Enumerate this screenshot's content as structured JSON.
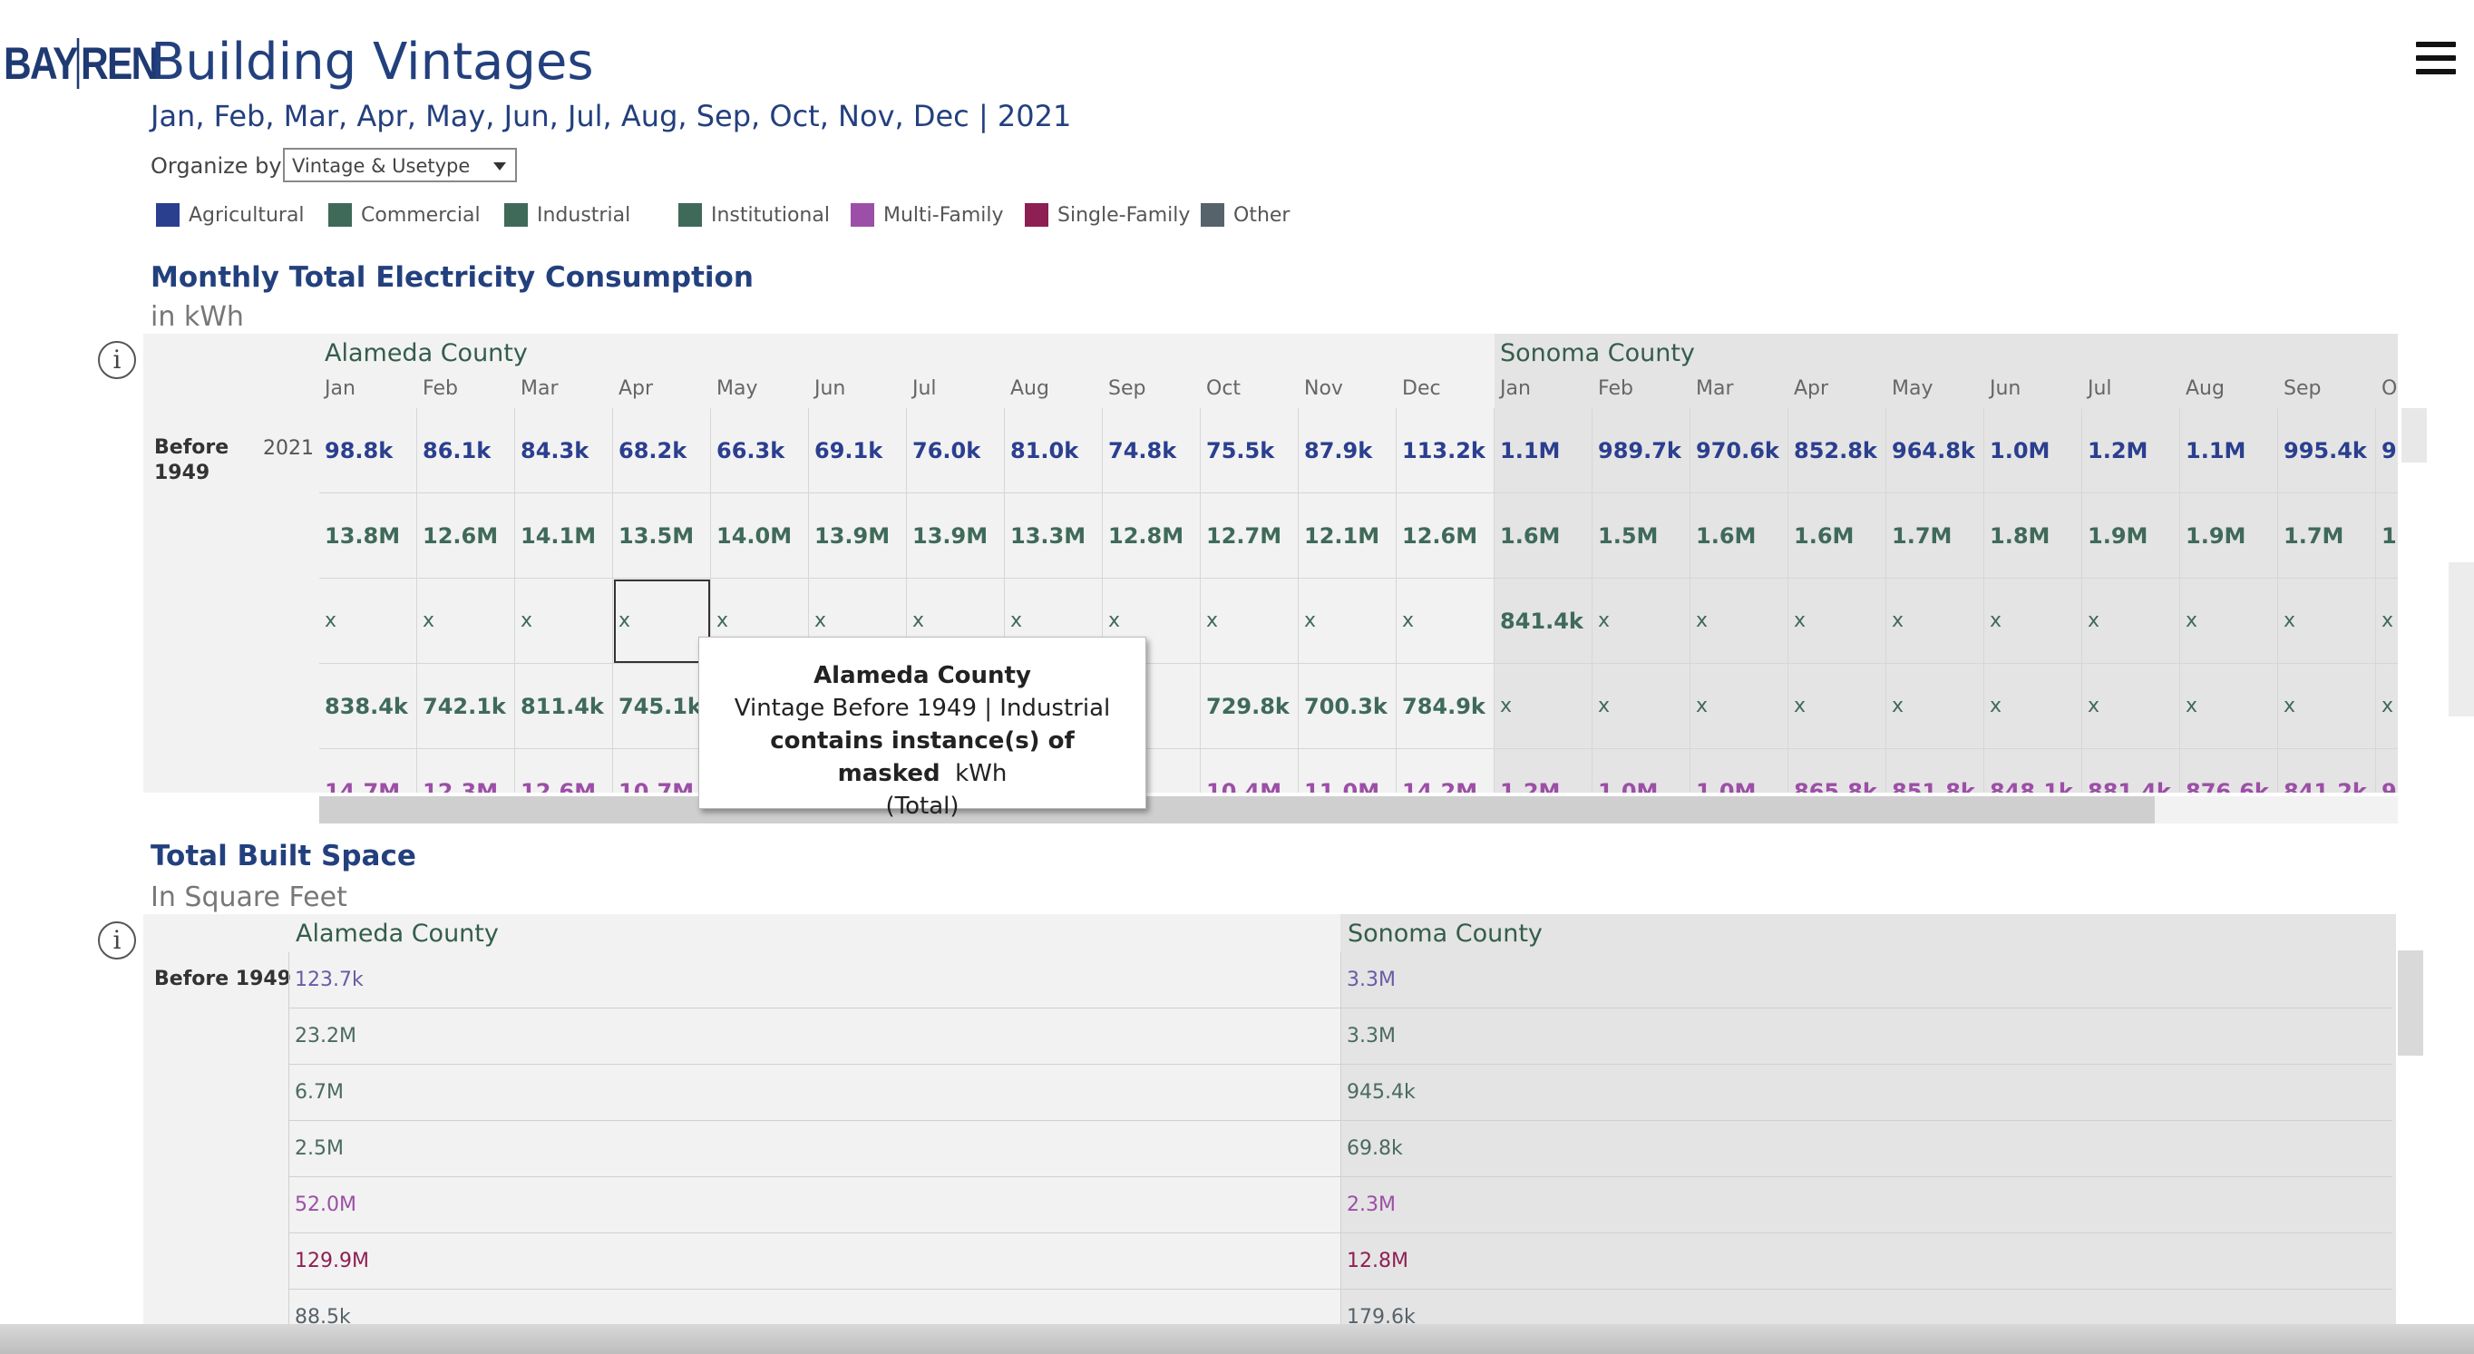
{
  "logo": {
    "part1": "BAY",
    "part2": "REN"
  },
  "header": {
    "title": "Building Vintages",
    "subtitle": "Jan, Feb, Mar, Apr, May, Jun, Jul, Aug, Sep, Oct, Nov, Dec | 2021"
  },
  "organize": {
    "label": "Organize by",
    "value": "Vintage & Usetype"
  },
  "legend": [
    {
      "label": "Agricultural",
      "color": "#2b3f8f"
    },
    {
      "label": "Commercial",
      "color": "#3f6a5a"
    },
    {
      "label": "Industrial",
      "color": "#3f6a5a"
    },
    {
      "label": "Institutional",
      "color": "#3f6a5a"
    },
    {
      "label": "Multi-Family",
      "color": "#9c4fa6"
    },
    {
      "label": "Single-Family",
      "color": "#8e1f52"
    },
    {
      "label": "Other",
      "color": "#56636b"
    }
  ],
  "electricity": {
    "title": "Monthly Total Electricity Consumption",
    "unit": "in kWh",
    "counties": [
      "Alameda County",
      "Sonoma County"
    ],
    "months_alameda": [
      "Jan",
      "Feb",
      "Mar",
      "Apr",
      "May",
      "Jun",
      "Jul",
      "Aug",
      "Sep",
      "Oct",
      "Nov",
      "Dec"
    ],
    "months_sonoma": [
      "Jan",
      "Feb",
      "Mar",
      "Apr",
      "May",
      "Jun",
      "Jul",
      "Aug",
      "Sep",
      "Oc"
    ],
    "row_label": "Before 1949",
    "year": "2021",
    "rows": [
      {
        "color": "#2b3f8f",
        "alameda": [
          "98.8k",
          "86.1k",
          "84.3k",
          "68.2k",
          "66.3k",
          "69.1k",
          "76.0k",
          "81.0k",
          "74.8k",
          "75.5k",
          "87.9k",
          "113.2k"
        ],
        "sonoma": [
          "1.1M",
          "989.7k",
          "970.6k",
          "852.8k",
          "964.8k",
          "1.0M",
          "1.2M",
          "1.1M",
          "995.4k",
          "9"
        ]
      },
      {
        "color": "#3f6a5a",
        "alameda": [
          "13.8M",
          "12.6M",
          "14.1M",
          "13.5M",
          "14.0M",
          "13.9M",
          "13.9M",
          "13.3M",
          "12.8M",
          "12.7M",
          "12.1M",
          "12.6M"
        ],
        "sonoma": [
          "1.6M",
          "1.5M",
          "1.6M",
          "1.6M",
          "1.7M",
          "1.8M",
          "1.9M",
          "1.9M",
          "1.7M",
          "1."
        ]
      },
      {
        "color": "#3f6a5a",
        "alameda": [
          "x",
          "x",
          "x",
          "x",
          "x",
          "x",
          "x",
          "x",
          "x",
          "x",
          "x",
          "x"
        ],
        "sonoma": [
          "841.4k",
          "x",
          "x",
          "x",
          "x",
          "x",
          "x",
          "x",
          "x",
          "x"
        ]
      },
      {
        "color": "#3f6a5a",
        "alameda": [
          "838.4k",
          "742.1k",
          "811.4k",
          "745.1k",
          "",
          "",
          "",
          "",
          ".3k",
          "729.8k",
          "700.3k",
          "784.9k"
        ],
        "sonoma": [
          "x",
          "x",
          "x",
          "x",
          "x",
          "x",
          "x",
          "x",
          "x",
          "x"
        ]
      },
      {
        "color": "#9c4fa6",
        "alameda": [
          "14.7M",
          "12.3M",
          "12.6M",
          "10.7M",
          "",
          "",
          "",
          "",
          "M",
          "10.4M",
          "11.0M",
          "14.2M"
        ],
        "sonoma": [
          "1.2M",
          "1.0M",
          "1.0M",
          "865.8k",
          "851.8k",
          "848.1k",
          "881.4k",
          "876.6k",
          "841.2k",
          "9"
        ]
      }
    ]
  },
  "tooltip": {
    "title": "Alameda County",
    "line2": "Vintage Before 1949 | Industrial",
    "line3_bold": "contains instance(s) of masked",
    "line3_rest": "kWh",
    "line4": "(Total)"
  },
  "built": {
    "title": "Total Built Space",
    "unit": "In Square Feet",
    "counties": [
      "Alameda County",
      "Sonoma County"
    ],
    "row_label": "Before 1949",
    "rows": [
      {
        "color": "#6b5aa6",
        "alameda": "123.7k",
        "sonoma": "3.3M"
      },
      {
        "color": "#4a6b5e",
        "alameda": "23.2M",
        "sonoma": "3.3M"
      },
      {
        "color": "#4a6b5e",
        "alameda": "6.7M",
        "sonoma": "945.4k"
      },
      {
        "color": "#4a6b5e",
        "alameda": "2.5M",
        "sonoma": "69.8k"
      },
      {
        "color": "#9c4fa6",
        "alameda": "52.0M",
        "sonoma": "2.3M"
      },
      {
        "color": "#8e1f52",
        "alameda": "129.9M",
        "sonoma": "12.8M"
      },
      {
        "color": "#56636b",
        "alameda": "88.5k",
        "sonoma": "179.6k"
      }
    ]
  }
}
